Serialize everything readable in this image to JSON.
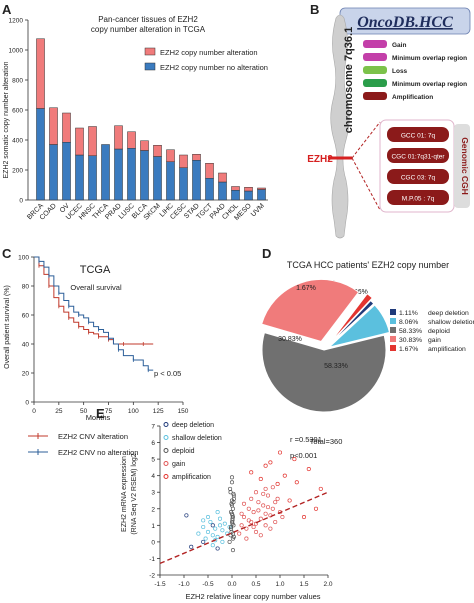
{
  "panels": {
    "A": "A",
    "B": "B",
    "C": "C",
    "D": "D",
    "E": "E"
  },
  "chart_data": [
    {
      "type": "bar",
      "title": "Pan-cancer tissues of EZH2 copy number alteration in TCGA",
      "title_lines": [
        "Pan-cancer tissues of EZH2",
        "copy number alteration in TCGA"
      ],
      "ylabel": "EZH2 somatic copy number alteration",
      "ylim": [
        0,
        1200
      ],
      "yticks": [
        0,
        200,
        400,
        600,
        800,
        1000,
        1200
      ],
      "categories": [
        "BRCA",
        "COAD",
        "OV",
        "UCEC",
        "HNSC",
        "THCA",
        "PRAD",
        "LUSC",
        "BLCA",
        "SKCM",
        "LIHC",
        "CESC",
        "STAD",
        "TGCT",
        "PAAD",
        "CHOL",
        "MESO",
        "UVM"
      ],
      "stacked": true,
      "series": [
        {
          "name": "EZH2 copy number no alteration",
          "color": "#3a7bbf",
          "values": [
            610,
            370,
            385,
            300,
            295,
            370,
            340,
            345,
            330,
            290,
            255,
            215,
            265,
            145,
            120,
            65,
            60,
            70
          ]
        },
        {
          "name": "EZH2 copy number alteration",
          "color": "#f07b7b",
          "values": [
            465,
            245,
            195,
            180,
            195,
            0,
            155,
            110,
            65,
            75,
            80,
            85,
            40,
            100,
            60,
            25,
            25,
            10
          ]
        }
      ]
    },
    {
      "type": "line",
      "subtitle": "TCGA",
      "annotation": "Overall survival",
      "pvalue": "p < 0.05",
      "xlabel": "Months",
      "ylabel": "Overall patient survival (%)",
      "xlim": [
        0,
        150
      ],
      "ylim": [
        0,
        100
      ],
      "xticks": [
        0,
        25,
        50,
        75,
        100,
        125,
        150
      ],
      "yticks": [
        0,
        20,
        40,
        60,
        80,
        100
      ],
      "series": [
        {
          "name": "EZH2 CNV alteration",
          "color": "#c0392b",
          "x": [
            0,
            5,
            10,
            15,
            20,
            25,
            30,
            35,
            40,
            45,
            50,
            55,
            60,
            65,
            70,
            75,
            80,
            90,
            100,
            110,
            120
          ],
          "y": [
            100,
            94,
            88,
            80,
            72,
            66,
            62,
            58,
            55,
            52,
            50,
            48,
            47,
            45,
            45,
            43,
            40,
            40,
            40,
            40,
            40
          ]
        },
        {
          "name": "EZH2 CNV no alteration",
          "color": "#2c5f99",
          "x": [
            0,
            5,
            10,
            15,
            20,
            25,
            30,
            35,
            40,
            45,
            50,
            55,
            60,
            65,
            70,
            75,
            80,
            85,
            90,
            100,
            110,
            115,
            120
          ],
          "y": [
            100,
            97,
            93,
            87,
            80,
            75,
            70,
            66,
            62,
            60,
            58,
            55,
            52,
            50,
            48,
            44,
            40,
            36,
            32,
            29,
            25,
            22,
            22
          ]
        }
      ]
    },
    {
      "type": "pie",
      "title": "TCGA HCC patients' EZH2 copy number",
      "total_label": "Total=360",
      "slices": [
        {
          "name": "deep deletion",
          "value": 1.11,
          "label": "1.11%",
          "color": "#1f3a7a"
        },
        {
          "name": "shallow deletion",
          "value": 8.06,
          "label": "8.06%",
          "color": "#5bc0de"
        },
        {
          "name": "deploid",
          "value": 58.33,
          "label": "58.33%",
          "color": "#707070"
        },
        {
          "name": "gain",
          "value": 30.83,
          "label": "30.83%",
          "color": "#f07b7b"
        },
        {
          "name": "amplification",
          "value": 1.67,
          "label": "1.67%",
          "color": "#e3342f"
        }
      ]
    },
    {
      "type": "scatter",
      "xlabel": "EZH2 relative linear copy number values",
      "ylabel": "EZH2 mRNA expression (RNA Seq V2 RSEM) log2",
      "ylabel_lines": [
        "EZH2 mRNA expression",
        "(RNA Seq V2 RSEM) log2"
      ],
      "xlim": [
        -1.5,
        2.0
      ],
      "ylim": [
        -2,
        7
      ],
      "xticks": [
        "-1.5",
        "-1.0",
        "-0.5",
        "0.0",
        "0.5",
        "1.0",
        "1.5",
        "2.0"
      ],
      "yticks": [
        "-2",
        "-1",
        "0",
        "1",
        "2",
        "3",
        "4",
        "5",
        "6",
        "7"
      ],
      "r": "r =0.5391",
      "p": "p<0.001",
      "trendline": {
        "x": [
          -1.5,
          2.0
        ],
        "y": [
          -1.3,
          3.0
        ],
        "color": "#b22222"
      },
      "series": [
        {
          "name": "deep deletion",
          "color": "#1f3a7a",
          "x": [
            -0.95,
            -0.85,
            -0.6,
            -0.4,
            -0.3
          ],
          "y": [
            1.6,
            -0.3,
            0.0,
            1.0,
            -0.4
          ]
        },
        {
          "name": "shallow deletion",
          "color": "#5bc0de",
          "x": [
            -0.7,
            -0.6,
            -0.55,
            -0.5,
            -0.45,
            -0.4,
            -0.35,
            -0.3,
            -0.25,
            -0.2,
            -0.15,
            -0.1,
            -0.05,
            -0.5,
            -0.3,
            -0.2,
            -0.4,
            -0.25,
            -0.6,
            -0.35
          ],
          "y": [
            0.5,
            0.9,
            0.2,
            0.6,
            1.2,
            0.4,
            0.8,
            0.3,
            1.0,
            0.7,
            1.1,
            0.5,
            0.9,
            1.5,
            1.8,
            0.0,
            -0.2,
            1.4,
            1.3,
            0.1
          ]
        },
        {
          "name": "deploid",
          "color": "#555555",
          "x": [
            -0.05,
            -0.03,
            -0.02,
            0.0,
            0.01,
            0.02,
            0.03,
            0.04,
            -0.04,
            0.0,
            0.02,
            -0.01,
            0.03,
            0.01,
            -0.02,
            0.0,
            0.04,
            -0.03,
            0.02,
            0.01,
            0.0,
            -0.01,
            0.03,
            0.02,
            0.0,
            -0.02,
            0.01,
            0.04,
            0.0,
            0.02
          ],
          "y": [
            0.0,
            0.4,
            0.8,
            1.2,
            1.6,
            2.0,
            2.4,
            2.8,
            3.2,
            3.6,
            0.2,
            0.6,
            1.0,
            1.4,
            1.8,
            2.2,
            2.6,
            3.0,
            0.5,
            1.1,
            1.7,
            2.3,
            2.9,
            -0.5,
            3.9,
            0.9,
            1.3,
            0.3,
            2.5,
            1.5
          ]
        },
        {
          "name": "gain",
          "color": "#e05555",
          "x": [
            0.15,
            0.2,
            0.25,
            0.3,
            0.35,
            0.4,
            0.45,
            0.5,
            0.55,
            0.6,
            0.65,
            0.7,
            0.75,
            0.8,
            0.85,
            0.9,
            0.95,
            1.0,
            0.3,
            0.4,
            0.5,
            0.6,
            0.7,
            0.8,
            0.9,
            0.35,
            0.55,
            0.75,
            0.2,
            0.45,
            0.65,
            0.85,
            1.05,
            0.25,
            0.5,
            0.7
          ],
          "y": [
            0.5,
            1.0,
            1.5,
            0.8,
            2.0,
            1.2,
            1.8,
            0.6,
            2.4,
            1.4,
            2.2,
            1.0,
            2.8,
            1.6,
            2.0,
            1.2,
            2.6,
            1.8,
            0.2,
            2.6,
            3.0,
            0.4,
            3.2,
            0.8,
            2.4,
            1.3,
            1.9,
            2.1,
            1.7,
            0.9,
            2.9,
            3.3,
            1.5,
            2.3,
            1.1,
            1.7
          ]
        },
        {
          "name": "amplification",
          "color": "#e3342f",
          "x": [
            0.4,
            0.6,
            0.8,
            0.95,
            1.1,
            1.2,
            1.35,
            1.5,
            1.6,
            1.75,
            1.85,
            1.3,
            1.0,
            0.7
          ],
          "y": [
            4.2,
            3.8,
            4.8,
            3.5,
            4.0,
            2.5,
            3.6,
            1.5,
            4.4,
            2.0,
            3.2,
            5.0,
            5.4,
            4.6
          ]
        }
      ]
    }
  ],
  "panel_b": {
    "title": "OncoDB.HCC",
    "chromosome": "chromosome 7q36.1",
    "gene": "EZH2",
    "legend": [
      {
        "label": "Gain",
        "color": "#c33fa9"
      },
      {
        "label": "Minimum overlap region",
        "color": "#c33fa9"
      },
      {
        "label": "Loss",
        "color": "#7cc24a"
      },
      {
        "label": "Minimum overlap region",
        "color": "#2a9d4a"
      },
      {
        "label": "Amplification",
        "color": "#8b1a1a"
      }
    ],
    "boxes": [
      "GCC 01: 7q",
      "CGC 01:7q31-qter",
      "CGC 03: 7q",
      "M.P.05 : 7q"
    ],
    "genomic_label": "Genomic CGH"
  },
  "pie_legend": [
    {
      "pct": "1.11%",
      "name": "deep deletion"
    },
    {
      "pct": "8.06%",
      "name": "shallow deletion"
    },
    {
      "pct": "58.33%",
      "name": "deploid"
    },
    {
      "pct": "30.83%",
      "name": "gain"
    },
    {
      "pct": "1.67%",
      "name": "amplification"
    }
  ]
}
